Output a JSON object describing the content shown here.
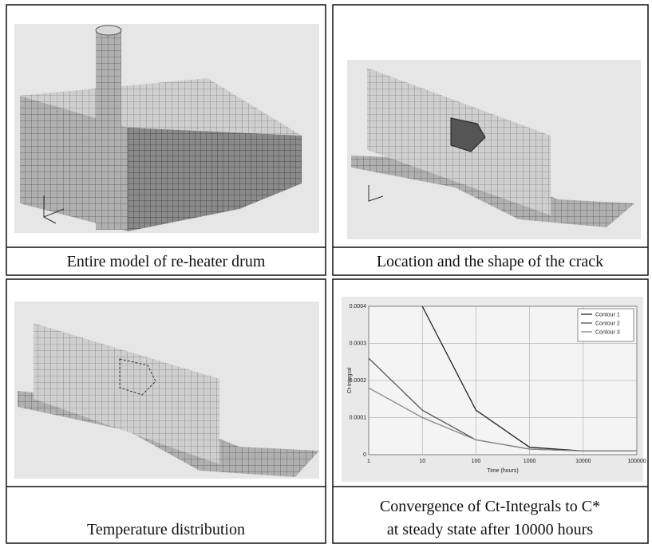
{
  "panels": [
    {
      "caption": "Entire model of re-heater drum"
    },
    {
      "caption": "Location and the shape of the crack"
    },
    {
      "caption": "Temperature distribution"
    },
    {
      "caption": [
        "Convergence of Ct-Integrals to C*",
        "at steady state after 10000 hours"
      ],
      "chart": {
        "type": "line",
        "x_label": "Time (hours)",
        "y_label": "Ct-Integral",
        "x": [
          1,
          10,
          100,
          1000,
          10000,
          100000
        ],
        "log_x": true,
        "grid": true,
        "legend": "top-right",
        "xlim": [
          1,
          100000
        ],
        "xticks": [
          1,
          10,
          100,
          1000,
          10000,
          100000
        ],
        "ylim": [
          0,
          0.0004
        ],
        "yticks": [
          0,
          0.0001,
          0.0002,
          0.0003,
          0.0004
        ],
        "series": [
          {
            "name": "Contour 1",
            "color": "#222222",
            "values": [
              null,
              0.0004,
              0.00012,
              2e-05,
              1e-05,
              1e-05
            ]
          },
          {
            "name": "Contour 2",
            "color": "#555555",
            "values": [
              0.00026,
              0.00012,
              4e-05,
              1.5e-05,
              1e-05,
              1e-05
            ]
          },
          {
            "name": "Contour 3",
            "color": "#888888",
            "values": [
              0.00018,
              0.0001,
              4e-05,
              1.5e-05,
              1e-05,
              1e-05
            ]
          }
        ]
      }
    }
  ]
}
